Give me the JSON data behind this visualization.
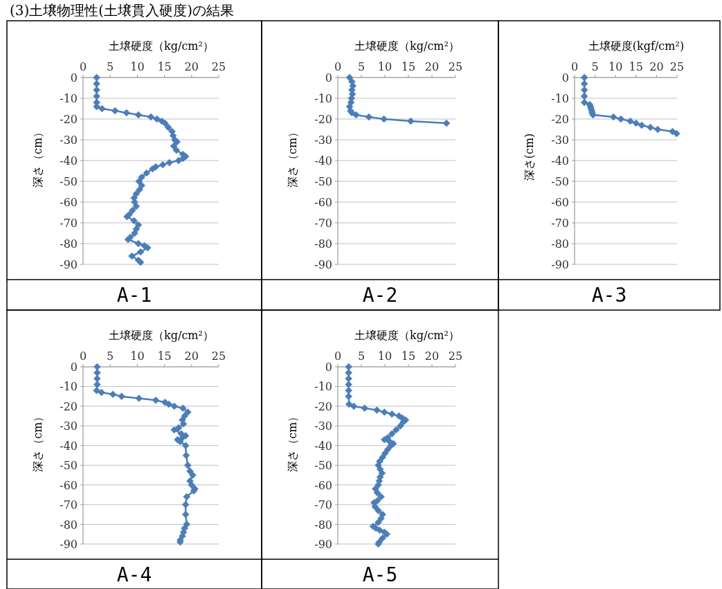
{
  "chart_data": [
    {
      "type": "line",
      "title": "(3)土壌物理性(土壌貫入硬度)の結果",
      "subtitle": "A-1",
      "xlabel": "土壌硬度（kg/cm²）",
      "ylabel": "深さ（cm）",
      "color": "#4a7ebb",
      "marker": "diamond",
      "grid": "y",
      "xlim": [
        0,
        25
      ],
      "xticks": [
        0,
        5,
        10,
        15,
        20,
        25
      ],
      "ylim": [
        -90,
        0
      ],
      "yticks": [
        -90,
        -80,
        -70,
        -60,
        -50,
        -40,
        -30,
        -20,
        -10,
        0
      ],
      "x": [
        2.5,
        2.5,
        2.5,
        2.5,
        2.5,
        2.5,
        3.5,
        5.9,
        8.0,
        10.2,
        12.5,
        13.6,
        14.5,
        15.1,
        15.7,
        16.4,
        16.6,
        16.9,
        17.3,
        16.7,
        17.2,
        18.4,
        18.9,
        18.4,
        17.6,
        15.9,
        14.7,
        13.4,
        12.8,
        11.7,
        10.8,
        10.3,
        10.8,
        10.4,
        9.8,
        9.4,
        9.5,
        9.8,
        9.1,
        8.5,
        8.1,
        9.4,
        10.2,
        9.8,
        9.5,
        8.7,
        8.3,
        10.2,
        11.3,
        11.9,
        10.6,
        9.0,
        10.2,
        10.6
      ],
      "values": [
        0,
        -3,
        -6,
        -9,
        -12,
        -14,
        -15,
        -16,
        -17,
        -18,
        -19,
        -20,
        -21,
        -22,
        -24,
        -26,
        -28,
        -30,
        -31,
        -33,
        -35,
        -37,
        -38,
        -39,
        -40,
        -41,
        -42,
        -43,
        -44,
        -46,
        -48,
        -50,
        -52,
        -54,
        -56,
        -58,
        -60,
        -62,
        -64,
        -66,
        -67,
        -69,
        -71,
        -73,
        -75,
        -77,
        -78,
        -80,
        -81,
        -82,
        -84,
        -86,
        -88,
        -89
      ]
    },
    {
      "type": "line",
      "subtitle": "A-2",
      "xlabel": "土壌硬度（kg/cm²）",
      "ylabel": "深さ（cm）",
      "color": "#4a7ebb",
      "marker": "diamond",
      "grid": "y",
      "xlim": [
        0,
        25
      ],
      "xticks": [
        0,
        5,
        10,
        15,
        20,
        25
      ],
      "ylim": [
        -90,
        0
      ],
      "yticks": [
        -90,
        -80,
        -70,
        -60,
        -50,
        -40,
        -30,
        -20,
        -10,
        0
      ],
      "x": [
        2.5,
        3.0,
        3.2,
        3.0,
        3.1,
        2.9,
        2.8,
        2.5,
        2.7,
        3.0,
        3.9,
        6.6,
        9.8,
        15.5,
        23.1
      ],
      "values": [
        0,
        -2,
        -4,
        -6,
        -8,
        -10,
        -12,
        -14,
        -16,
        -17,
        -18,
        -19,
        -20,
        -21,
        -22
      ]
    },
    {
      "type": "line",
      "subtitle": "A-3",
      "xlabel": "土壌硬度(kgf/cm²)",
      "ylabel": "深さ(cm)",
      "color": "#4a7ebb",
      "marker": "diamond",
      "grid": "y",
      "xlim": [
        0,
        25
      ],
      "xticks": [
        0,
        5,
        10,
        15,
        20,
        25
      ],
      "ylim": [
        -90,
        0
      ],
      "yticks": [
        -90,
        -80,
        -70,
        -60,
        -50,
        -40,
        -30,
        -20,
        -10,
        0
      ],
      "x": [
        2.4,
        2.4,
        2.4,
        2.4,
        2.4,
        3.7,
        3.9,
        4.0,
        4.2,
        4.3,
        4.5,
        9.5,
        11.3,
        13.6,
        15.0,
        16.4,
        18.5,
        20.3,
        23.9,
        24.9
      ],
      "values": [
        0,
        -3,
        -6,
        -9,
        -12,
        -13,
        -14,
        -15,
        -16,
        -17,
        -18,
        -19,
        -20,
        -21,
        -22,
        -23,
        -24,
        -25,
        -26,
        -27
      ]
    },
    {
      "type": "line",
      "subtitle": "A-4",
      "xlabel": "土壌硬度（kg/cm²）",
      "ylabel": "深さ（cm）",
      "color": "#4a7ebb",
      "marker": "diamond",
      "grid": "y",
      "xlim": [
        0,
        25
      ],
      "xticks": [
        0,
        5,
        10,
        15,
        20,
        25
      ],
      "ylim": [
        -90,
        0
      ],
      "yticks": [
        -90,
        -80,
        -70,
        -60,
        -50,
        -40,
        -30,
        -20,
        -10,
        0
      ],
      "x": [
        2.6,
        2.6,
        2.6,
        2.6,
        2.5,
        3.4,
        5.5,
        7.1,
        10.3,
        13.4,
        15.1,
        15.8,
        16.8,
        18.4,
        19.3,
        18.7,
        18.3,
        18.5,
        17.6,
        16.8,
        18.1,
        18.9,
        18.3,
        17.4,
        17.9,
        18.9,
        19.0,
        19.3,
        19.7,
        20.2,
        19.7,
        20.0,
        20.6,
        20.4,
        19.1,
        18.9,
        18.9,
        19.1,
        18.7,
        18.5,
        18.3,
        17.9,
        17.9
      ],
      "values": [
        0,
        -3,
        -6,
        -9,
        -12,
        -13,
        -14,
        -15,
        -16,
        -17,
        -18,
        -19,
        -20,
        -21,
        -23,
        -25,
        -27,
        -29,
        -31,
        -32,
        -34,
        -35,
        -36,
        -37,
        -38,
        -40,
        -45,
        -50,
        -53,
        -55,
        -58,
        -60,
        -62,
        -63,
        -66,
        -70,
        -75,
        -80,
        -82,
        -84,
        -86,
        -88,
        -89
      ]
    },
    {
      "type": "line",
      "subtitle": "A-5",
      "xlabel": "土壌硬度（kg/cm²）",
      "ylabel": "深さ（cm）",
      "color": "#4a7ebb",
      "marker": "diamond",
      "grid": "y",
      "xlim": [
        0,
        25
      ],
      "xticks": [
        0,
        5,
        10,
        15,
        20,
        25
      ],
      "ylim": [
        -90,
        0
      ],
      "yticks": [
        -90,
        -80,
        -70,
        -60,
        -50,
        -40,
        -30,
        -20,
        -10,
        0
      ],
      "x": [
        2.3,
        2.3,
        2.3,
        2.3,
        2.3,
        2.3,
        2.4,
        3.4,
        5.7,
        8.3,
        9.9,
        11.5,
        13.0,
        13.7,
        14.4,
        13.9,
        13.3,
        12.4,
        11.5,
        10.6,
        9.9,
        11.0,
        11.8,
        11.3,
        10.6,
        10.0,
        9.5,
        8.9,
        8.6,
        9.0,
        9.4,
        9.0,
        8.8,
        8.6,
        8.0,
        8.4,
        9.2,
        8.4,
        7.7,
        7.9,
        8.6,
        9.5,
        9.2,
        8.6,
        7.5,
        8.1,
        8.9,
        9.9,
        10.4,
        9.5,
        8.8,
        8.6
      ],
      "values": [
        0,
        -3,
        -6,
        -9,
        -12,
        -15,
        -19,
        -20,
        -21,
        -22,
        -23,
        -24,
        -25,
        -26,
        -27,
        -28,
        -30,
        -32,
        -34,
        -36,
        -37,
        -38,
        -39,
        -40,
        -42,
        -44,
        -46,
        -48,
        -50,
        -52,
        -54,
        -56,
        -58,
        -60,
        -62,
        -64,
        -66,
        -68,
        -69,
        -71,
        -73,
        -75,
        -77,
        -79,
        -81,
        -82,
        -83,
        -84,
        -85,
        -87,
        -89,
        -90
      ]
    }
  ]
}
